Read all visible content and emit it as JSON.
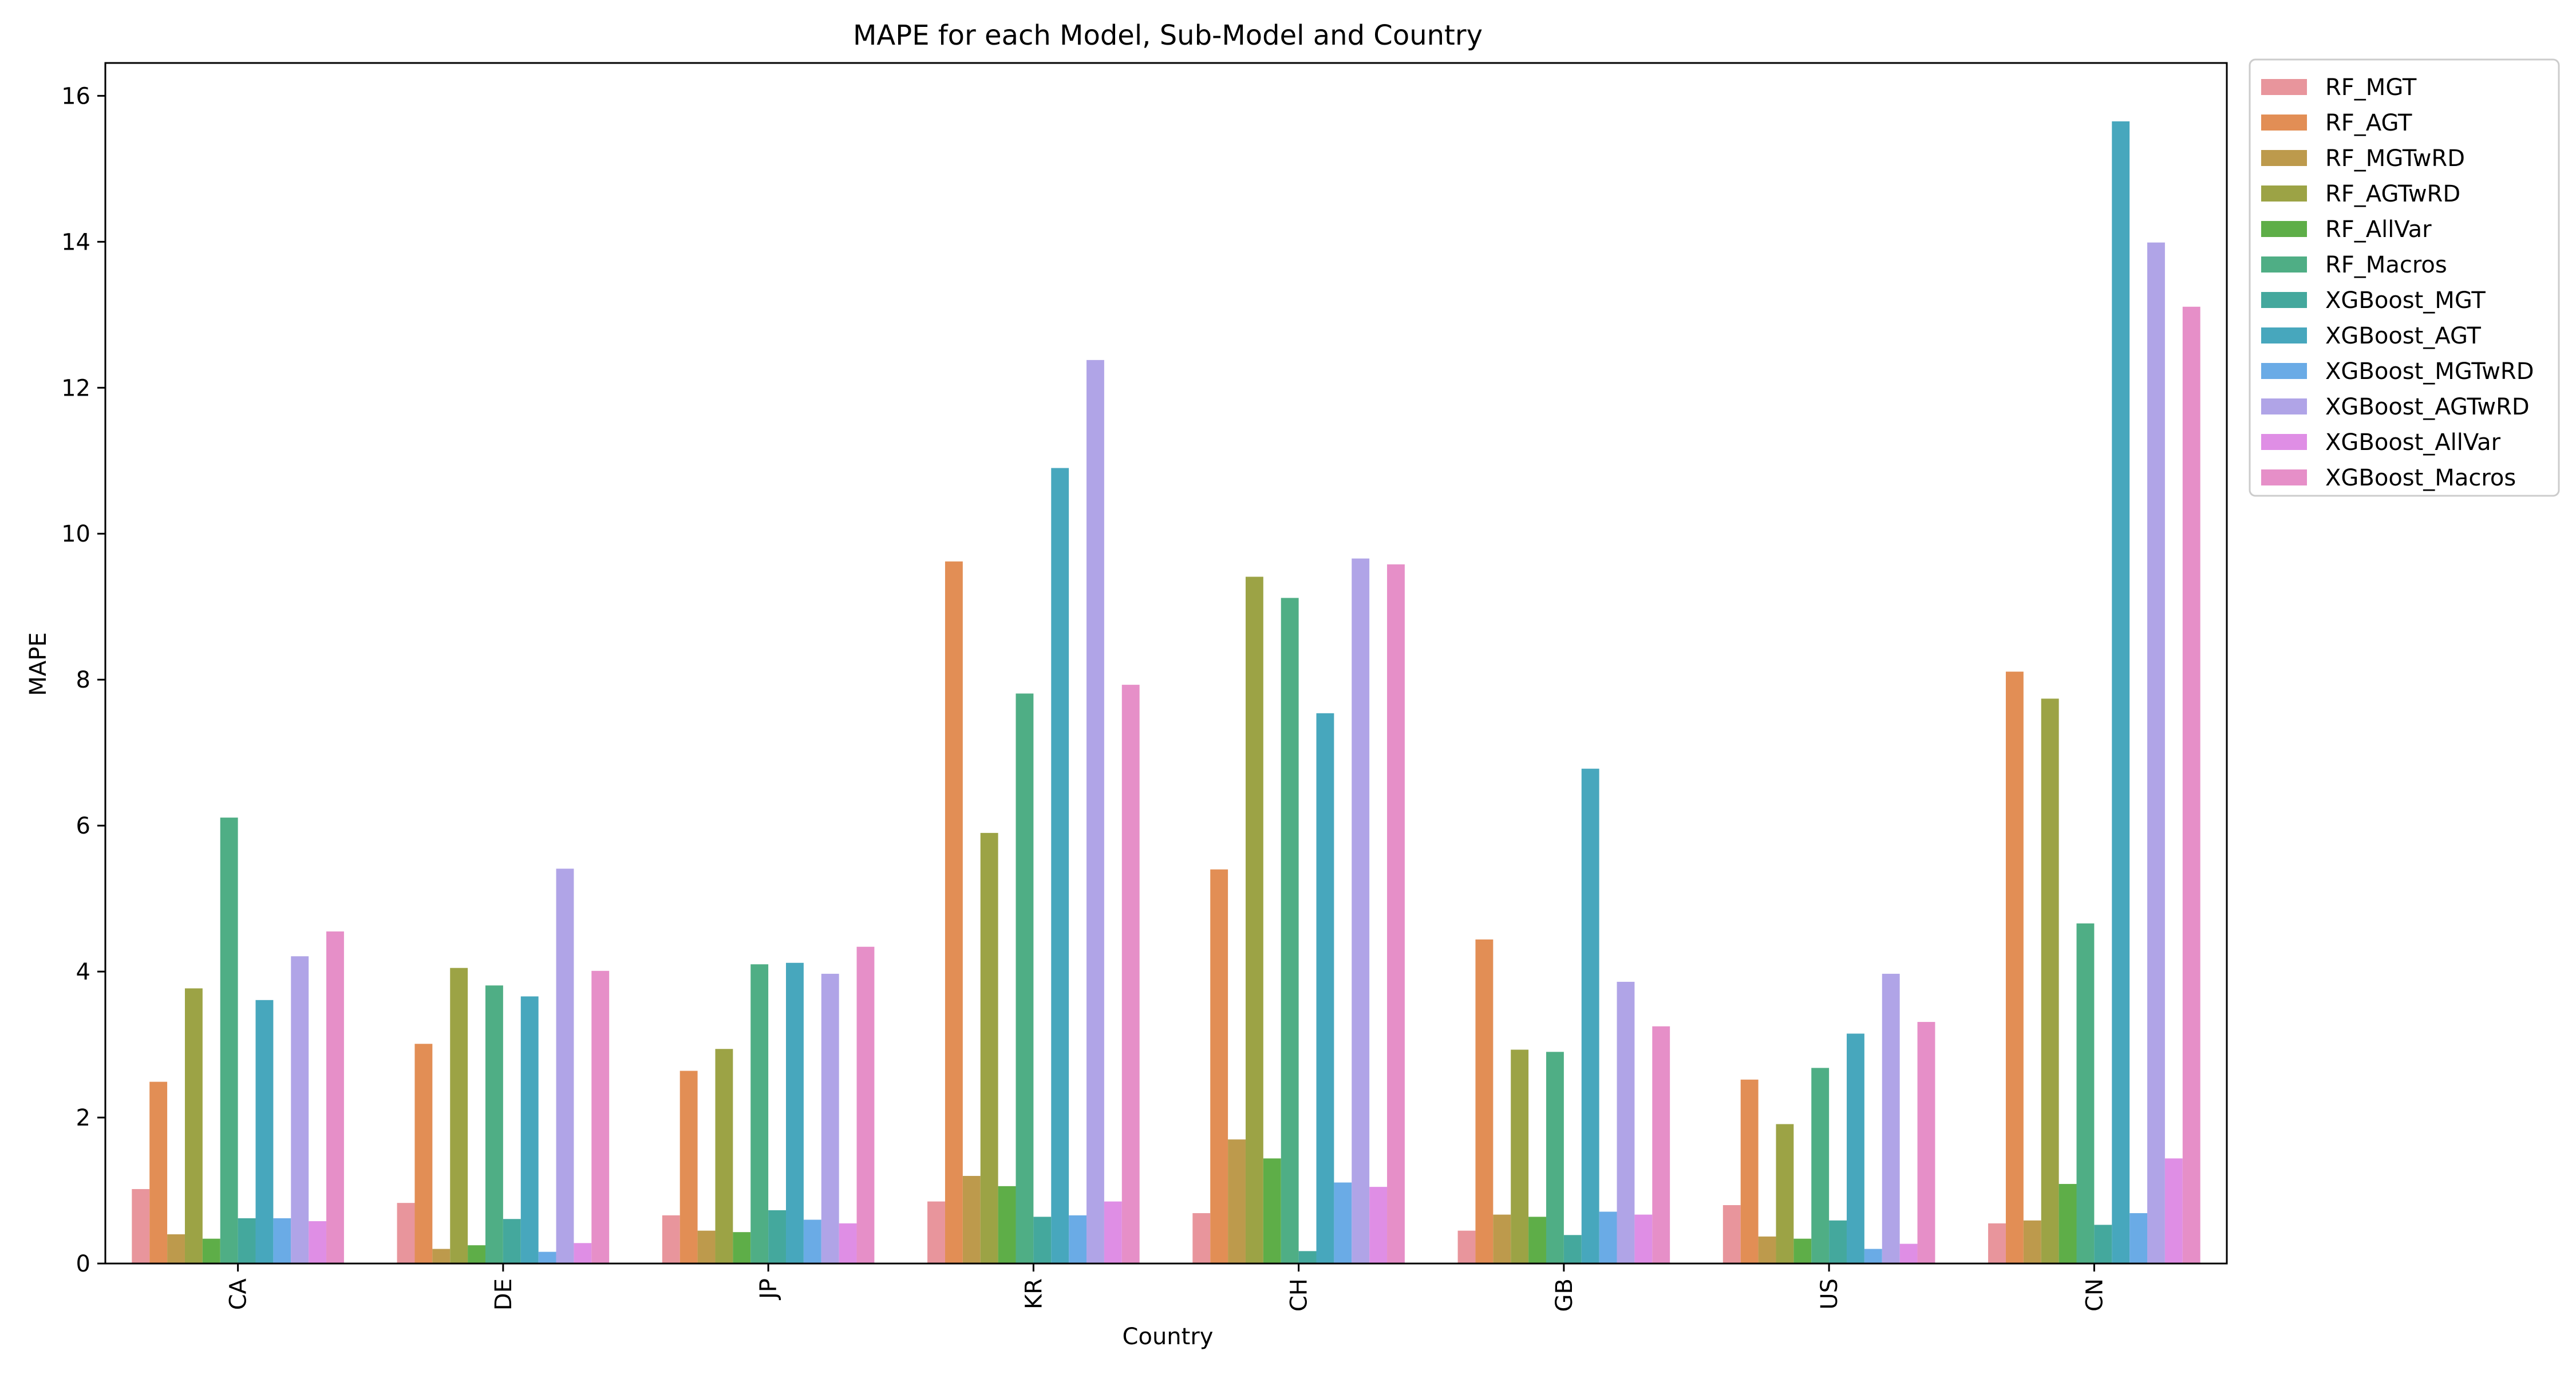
{
  "chart_data": {
    "type": "bar",
    "title": "MAPE for each Model, Sub-Model and Country",
    "xlabel": "Country",
    "ylabel": "MAPE",
    "ylim": [
      0,
      16.45
    ],
    "yticks": [
      0,
      2,
      4,
      6,
      8,
      10,
      12,
      14,
      16
    ],
    "grid": false,
    "legend_position": "outside-right-top",
    "categories": [
      "CA",
      "DE",
      "JP",
      "KR",
      "CH",
      "GB",
      "US",
      "CN"
    ],
    "series": [
      {
        "name": "RF_MGT",
        "color": "#e8959c",
        "values": [
          1.02,
          0.83,
          0.66,
          0.85,
          0.69,
          0.45,
          0.8,
          0.55
        ]
      },
      {
        "name": "RF_AGT",
        "color": "#e28e55",
        "values": [
          2.49,
          3.01,
          2.64,
          9.62,
          5.4,
          4.44,
          2.52,
          8.11
        ]
      },
      {
        "name": "RF_MGTwRD",
        "color": "#bd9a4c",
        "values": [
          0.4,
          0.2,
          0.45,
          1.2,
          1.7,
          0.67,
          0.37,
          0.59
        ]
      },
      {
        "name": "RF_AGTwRD",
        "color": "#9ca345",
        "values": [
          3.77,
          4.05,
          2.94,
          5.9,
          9.41,
          2.93,
          1.91,
          7.74
        ]
      },
      {
        "name": "RF_AllVar",
        "color": "#5eae48",
        "values": [
          0.34,
          0.25,
          0.43,
          1.06,
          1.44,
          0.64,
          0.34,
          1.09
        ]
      },
      {
        "name": "RF_Macros",
        "color": "#4fae85",
        "values": [
          6.11,
          3.81,
          4.1,
          7.81,
          9.12,
          2.9,
          2.68,
          4.66
        ]
      },
      {
        "name": "XGBoost_MGT",
        "color": "#44a89d",
        "values": [
          0.62,
          0.61,
          0.73,
          0.64,
          0.17,
          0.39,
          0.59,
          0.53
        ]
      },
      {
        "name": "XGBoost_AGT",
        "color": "#47a7bd",
        "values": [
          3.61,
          3.66,
          4.12,
          10.9,
          7.54,
          6.78,
          3.15,
          15.65
        ]
      },
      {
        "name": "XGBoost_MGTwRD",
        "color": "#6aabe6",
        "values": [
          0.62,
          0.16,
          0.6,
          0.66,
          1.11,
          0.71,
          0.2,
          0.69
        ]
      },
      {
        "name": "XGBoost_AGTwRD",
        "color": "#b0a4e7",
        "values": [
          4.21,
          5.41,
          3.97,
          12.38,
          9.66,
          3.86,
          3.97,
          13.99
        ]
      },
      {
        "name": "XGBoost_AllVar",
        "color": "#df8ee5",
        "values": [
          0.58,
          0.28,
          0.55,
          0.85,
          1.05,
          0.67,
          0.27,
          1.44
        ]
      },
      {
        "name": "XGBoost_Macros",
        "color": "#e68fc8",
        "values": [
          4.55,
          4.01,
          4.34,
          7.93,
          9.58,
          3.25,
          3.31,
          13.11
        ]
      }
    ]
  }
}
